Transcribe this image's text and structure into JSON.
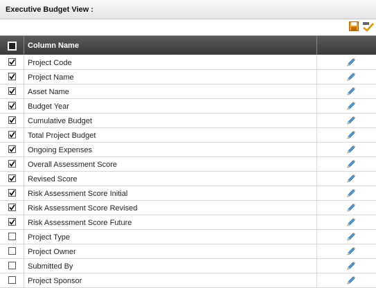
{
  "header": {
    "title": "Executive Budget View :"
  },
  "table": {
    "columns": [
      "Column Name"
    ],
    "rows": [
      {
        "label": "Project Code",
        "checked": true
      },
      {
        "label": "Project Name",
        "checked": true
      },
      {
        "label": "Asset Name",
        "checked": true
      },
      {
        "label": "Budget Year",
        "checked": true
      },
      {
        "label": "Cumulative Budget",
        "checked": true
      },
      {
        "label": "Total Project Budget",
        "checked": true
      },
      {
        "label": "Ongoing Expenses",
        "checked": true
      },
      {
        "label": "Overall Assessment Score",
        "checked": true
      },
      {
        "label": "Revised Score",
        "checked": true
      },
      {
        "label": "Risk Assessment Score Initial",
        "checked": true
      },
      {
        "label": "Risk Assessment Score Revised",
        "checked": true
      },
      {
        "label": "Risk Assessment Score Future",
        "checked": true
      },
      {
        "label": "Project Type",
        "checked": false
      },
      {
        "label": "Project Owner",
        "checked": false
      },
      {
        "label": "Submitted By",
        "checked": false
      },
      {
        "label": "Project Sponsor",
        "checked": false
      }
    ]
  }
}
